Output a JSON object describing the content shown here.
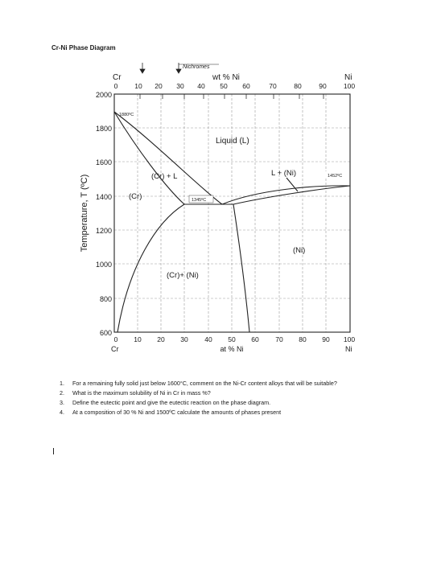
{
  "document": {
    "title": "Cr-Ni Phase Diagram"
  },
  "diagram": {
    "top_axis": {
      "left_element": "Cr",
      "right_element": "Ni",
      "label": "wt % Ni",
      "ticks": [
        "0",
        "10",
        "20",
        "30",
        "40",
        "50",
        "60",
        "70",
        "80",
        "90",
        "100"
      ]
    },
    "bottom_axis": {
      "left_element": "Cr",
      "right_element": "Ni",
      "label": "at % Ni",
      "ticks": [
        "0",
        "10",
        "20",
        "30",
        "40",
        "50",
        "60",
        "70",
        "80",
        "90",
        "100"
      ]
    },
    "y_axis": {
      "label": "Temperature, T (ºC)",
      "ticks": [
        "2000",
        "1800",
        "1600",
        "1400",
        "1200",
        "1000",
        "800",
        "600"
      ],
      "range": [
        600,
        2000
      ]
    },
    "nichromes_label": "Nichromes",
    "points": {
      "cr_melting": {
        "x_at": 0,
        "t": 1880,
        "label": "1880ºC"
      },
      "eutectic": {
        "x_at": 45,
        "t": 1345,
        "label": "1345ºC"
      },
      "ni_melting": {
        "x_at": 100,
        "t": 1452,
        "label": "1452ºC"
      }
    },
    "regions": {
      "liquid": "Liquid (L)",
      "cr_plus_l": "(Cr) + L",
      "l_plus_ni": "L + (Ni)",
      "cr": "(Cr)",
      "ni": "(Ni)",
      "cr_plus_ni": "(Cr)+ (Ni)"
    }
  },
  "questions": [
    {
      "number": "1.",
      "text": "For a remaining fully solid just below 1600°C, comment on the Ni-Cr content alloys that will be suitable?"
    },
    {
      "number": "2.",
      "text": "What is the maximum solubility of Ni in Cr in mass %?"
    },
    {
      "number": "3.",
      "text": "Define the eutectic point and give the eutectic reaction on the phase diagram."
    },
    {
      "number": "4.",
      "text": "At a composition of 30 % Ni and 1500ºC calculate the amounts of phases present"
    }
  ]
}
